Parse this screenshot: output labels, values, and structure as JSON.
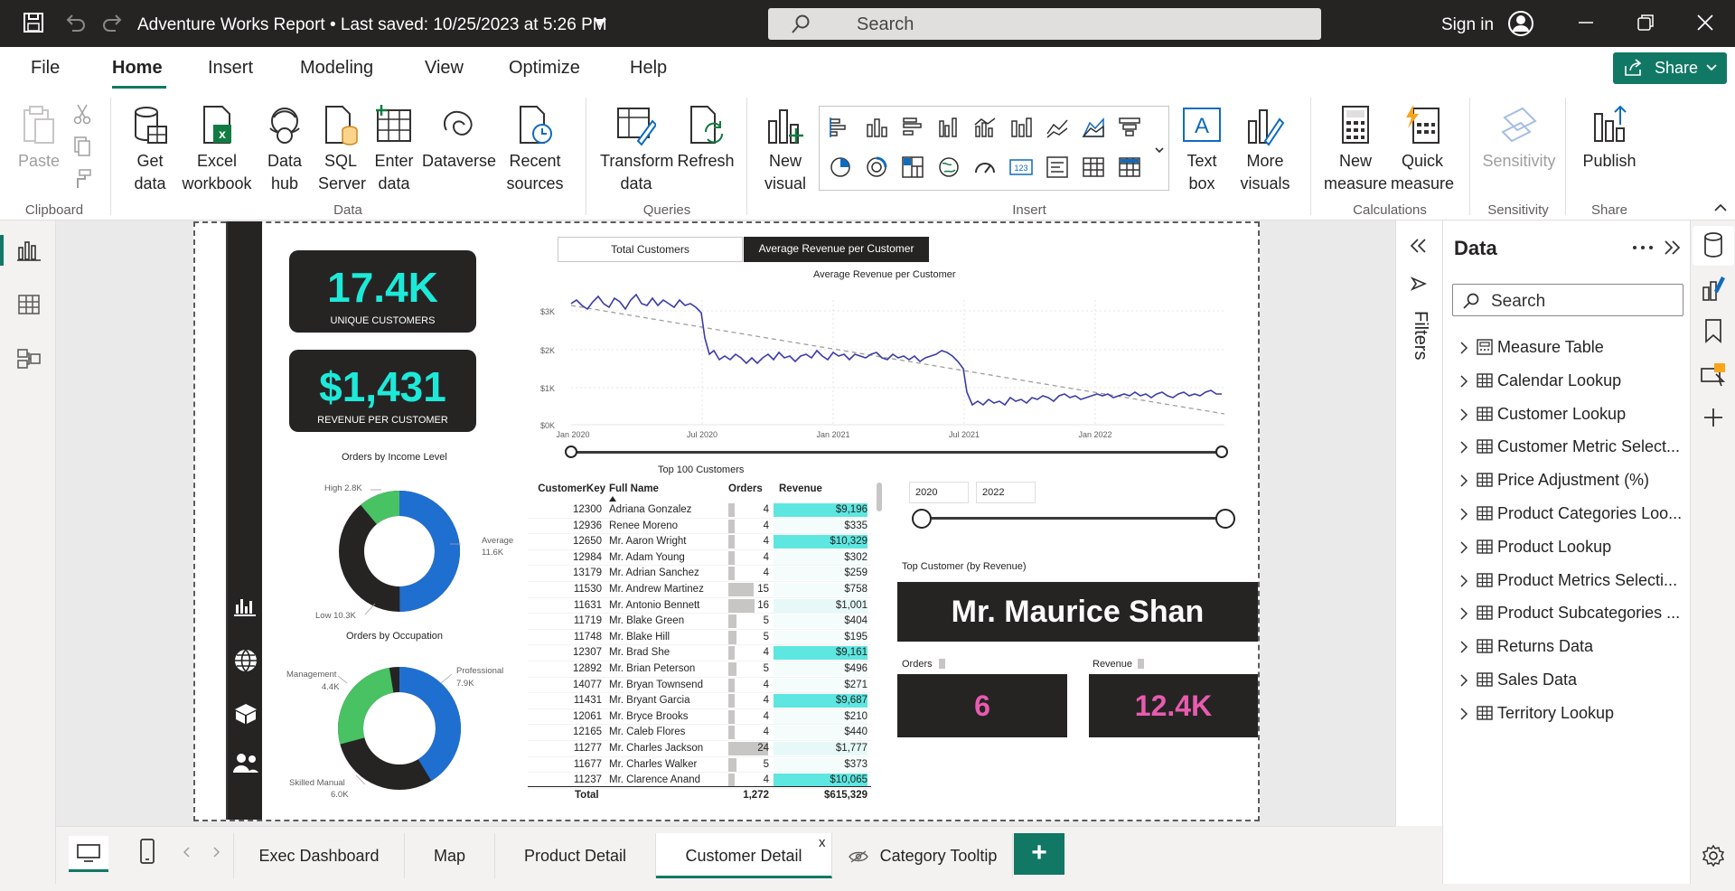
{
  "titlebar": {
    "title": "Adventure Works Report • Last saved: 10/25/2023 at 5:26 PM",
    "search_placeholder": "Search",
    "signin": "Sign in"
  },
  "ribbon_tabs": [
    "File",
    "Home",
    "Insert",
    "Modeling",
    "View",
    "Optimize",
    "Help"
  ],
  "share_label": "Share",
  "ribbon": {
    "clipboard": {
      "group": "Clipboard",
      "paste": "Paste"
    },
    "data": {
      "group": "Data",
      "get_data": "Get data",
      "excel": "Excel workbook",
      "datahub": "Data hub",
      "sql": "SQL Server",
      "enter": "Enter data",
      "dataverse": "Dataverse",
      "recent": "Recent sources"
    },
    "queries": {
      "group": "Queries",
      "transform": "Transform data",
      "refresh": "Refresh"
    },
    "insert": {
      "group": "Insert",
      "new_visual": "New visual",
      "text_box": "Text box",
      "more_visuals": "More visuals"
    },
    "calculations": {
      "group": "Calculations",
      "new_measure": "New measure",
      "quick_measure": "Quick measure"
    },
    "sensitivity": {
      "group": "Sensitivity",
      "label": "Sensitivity"
    },
    "share": {
      "group": "Share",
      "publish": "Publish"
    }
  },
  "kpis": [
    {
      "value": "17.4K",
      "label": "UNIQUE CUSTOMERS"
    },
    {
      "value": "$1,431",
      "label": "REVENUE PER CUSTOMER"
    }
  ],
  "toggle": {
    "a": "Total Customers",
    "b": "Average Revenue per Customer"
  },
  "line_chart": {
    "title": "Average Revenue per Customer",
    "y_ticks": [
      "$0K",
      "$1K",
      "$2K",
      "$3K"
    ],
    "x_ticks": [
      "Jan 2020",
      "Jul 2020",
      "Jan 2021",
      "Jul 2021",
      "Jan 2022"
    ]
  },
  "donut_income": {
    "title": "Orders by Income Level",
    "labels": [
      "High 2.8K",
      "Average",
      "11.6K",
      "Low 10.3K"
    ]
  },
  "donut_occupation": {
    "title": "Orders by Occupation",
    "labels": [
      "Management",
      "4.4K",
      "Professional",
      "7.9K",
      "Skilled Manual",
      "6.0K"
    ]
  },
  "table": {
    "title": "Top 100 Customers",
    "headers": [
      "CustomerKey",
      "Full Name",
      "Orders",
      "Revenue"
    ],
    "rows": [
      [
        "12300",
        "Adriana Gonzalez",
        "4",
        "$9,196"
      ],
      [
        "12936",
        "Renee Moreno",
        "4",
        "$335"
      ],
      [
        "12650",
        "Mr. Aaron Wright",
        "4",
        "$10,329"
      ],
      [
        "12984",
        "Mr. Adam Young",
        "4",
        "$302"
      ],
      [
        "13179",
        "Mr. Adrian Sanchez",
        "4",
        "$259"
      ],
      [
        "11530",
        "Mr. Andrew Martinez",
        "15",
        "$758"
      ],
      [
        "11631",
        "Mr. Antonio Bennett",
        "16",
        "$1,001"
      ],
      [
        "11719",
        "Mr. Blake Green",
        "5",
        "$404"
      ],
      [
        "11748",
        "Mr. Blake Hill",
        "5",
        "$195"
      ],
      [
        "12307",
        "Mr. Brad She",
        "4",
        "$9,161"
      ],
      [
        "12892",
        "Mr. Brian Peterson",
        "5",
        "$496"
      ],
      [
        "14077",
        "Mr. Bryan Townsend",
        "4",
        "$271"
      ],
      [
        "11431",
        "Mr. Bryant Garcia",
        "4",
        "$9,687"
      ],
      [
        "12061",
        "Mr. Bryce Brooks",
        "4",
        "$210"
      ],
      [
        "12165",
        "Mr. Caleb Flores",
        "4",
        "$440"
      ],
      [
        "11277",
        "Mr. Charles Jackson",
        "24",
        "$1,777"
      ],
      [
        "11677",
        "Mr. Charles Walker",
        "5",
        "$373"
      ],
      [
        "11237",
        "Mr. Clarence Anand",
        "4",
        "$10,065"
      ]
    ],
    "total": [
      "Total",
      "1,272",
      "$615,329"
    ]
  },
  "year_slicer": {
    "from": "2020",
    "to": "2022"
  },
  "top_customer": {
    "title": "Top Customer (by Revenue)",
    "name": "Mr. Maurice Shan",
    "orders_label": "Orders",
    "orders": "6",
    "revenue_label": "Revenue",
    "revenue": "12.4K"
  },
  "filters_label": "Filters",
  "data_pane": {
    "title": "Data",
    "search": "Search",
    "items": [
      "Measure Table",
      "Calendar Lookup",
      "Customer Lookup",
      "Customer Metric Select...",
      "Price Adjustment (%)",
      "Product Categories Loo...",
      "Product Lookup",
      "Product Metrics Selecti...",
      "Product Subcategories ...",
      "Returns Data",
      "Sales Data",
      "Territory Lookup"
    ]
  },
  "page_tabs": [
    "Exec Dashboard",
    "Map",
    "Product Detail",
    "Customer Detail",
    "Category Tooltip"
  ],
  "add_page": "+",
  "close_tab": "x",
  "colors": {
    "accent": "#117865",
    "teal": "#1de9d9",
    "pink": "#e85bb0",
    "blue": "#1f6fd1",
    "green": "#48c263",
    "dark": "#252423",
    "line": "#3b3ca8"
  }
}
